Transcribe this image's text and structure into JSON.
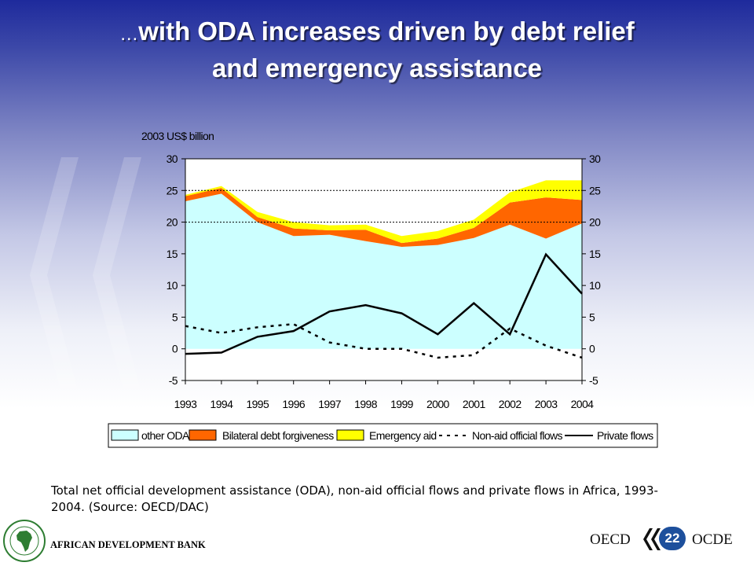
{
  "slide": {
    "title_prefix": "…",
    "title_line1": "with ODA increases driven by debt relief",
    "title_line2": "and emergency assistance",
    "caption_line1": "Total net official development assistance (ODA), non-aid official flows and private flows in Africa, 1993-",
    "caption_line2": "2004.  (Source: OECD/DAC)",
    "footer_org": "AFRICAN DEVELOPMENT BANK",
    "oecd_left": "OECD",
    "oecd_right": "OCDE",
    "page_number": "22"
  },
  "colors": {
    "other_oda": "#ccffff",
    "debt_forgiveness": "#ff6600",
    "emergency_aid": "#ffff00",
    "lines": "#000000"
  },
  "chart_data": {
    "type": "area",
    "ylabel": "2003 US$ billion",
    "ylim": [
      -5,
      30
    ],
    "yticks": [
      -5,
      0,
      5,
      10,
      15,
      20,
      25,
      30
    ],
    "categories": [
      "1993",
      "1994",
      "1995",
      "1996",
      "1997",
      "1998",
      "1999",
      "2000",
      "2001",
      "2002",
      "2003",
      "2004"
    ],
    "stacked_series": [
      {
        "name": "other ODA",
        "values": [
          23.3,
          24.5,
          20.0,
          17.8,
          18.0,
          17.0,
          16.1,
          16.4,
          17.5,
          19.6,
          17.4,
          19.8
        ]
      },
      {
        "name": "Bilateral debt forgiveness",
        "values": [
          0.8,
          0.9,
          0.8,
          1.2,
          0.7,
          1.8,
          0.6,
          1.0,
          1.6,
          3.5,
          6.5,
          3.7
        ]
      },
      {
        "name": "Emergency aid",
        "values": [
          0.2,
          0.3,
          0.8,
          1.0,
          0.8,
          0.8,
          1.1,
          1.2,
          1.3,
          1.6,
          2.7,
          3.1
        ]
      }
    ],
    "line_series": [
      {
        "name": "Non-aid official flows",
        "style": "dashed",
        "values": [
          3.6,
          2.5,
          3.4,
          3.9,
          1.0,
          0.0,
          0.0,
          -1.4,
          -1.0,
          3.2,
          0.5,
          -1.4
        ]
      },
      {
        "name": "Private flows",
        "style": "solid",
        "values": [
          -0.8,
          -0.6,
          1.9,
          2.8,
          5.9,
          6.9,
          5.6,
          2.3,
          7.2,
          2.3,
          14.9,
          8.7
        ]
      }
    ],
    "reference_lines": [
      25,
      20
    ],
    "legend": [
      "other ODA",
      "Bilateral debt forgiveness",
      "Emergency aid",
      "Non-aid official flows",
      "Private flows"
    ],
    "legend_position": "bottom"
  }
}
